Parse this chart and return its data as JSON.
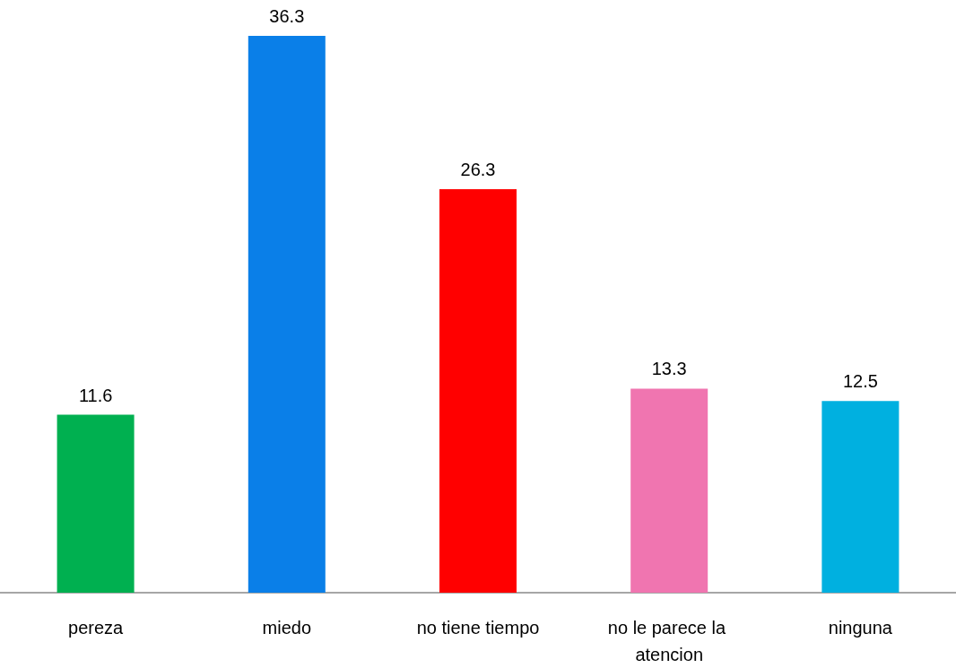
{
  "chart_data": {
    "type": "bar",
    "categories": [
      "pereza",
      "miedo",
      "no tiene tiempo",
      "no le parece la atencion",
      "ninguna"
    ],
    "values": [
      11.6,
      36.3,
      26.3,
      13.3,
      12.5
    ],
    "colors": [
      "#00b050",
      "#0a7fe8",
      "#ff0000",
      "#f075b0",
      "#00b0e0"
    ],
    "data_labels": true
  }
}
